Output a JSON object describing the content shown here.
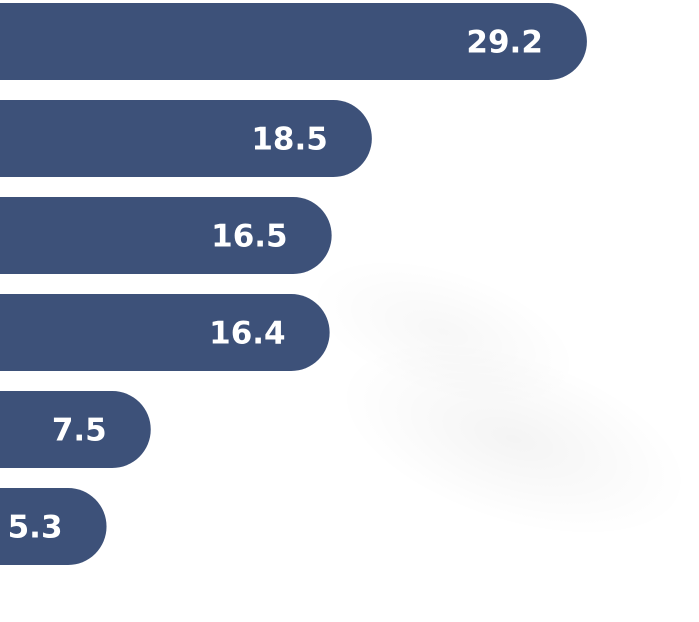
{
  "chart_data": {
    "type": "bar",
    "orientation": "horizontal",
    "title": "",
    "xlabel": "",
    "ylabel": "",
    "values": [
      29.2,
      18.5,
      16.5,
      16.4,
      7.5,
      5.3
    ],
    "data_labels": [
      "29.2",
      "18.5",
      "16.5",
      "16.4",
      "7.5",
      "5.3"
    ],
    "grid": false,
    "legend": "none",
    "colors": {
      "bar": "#3d5179",
      "label": "#ffffff",
      "background": "#ffffff"
    }
  }
}
